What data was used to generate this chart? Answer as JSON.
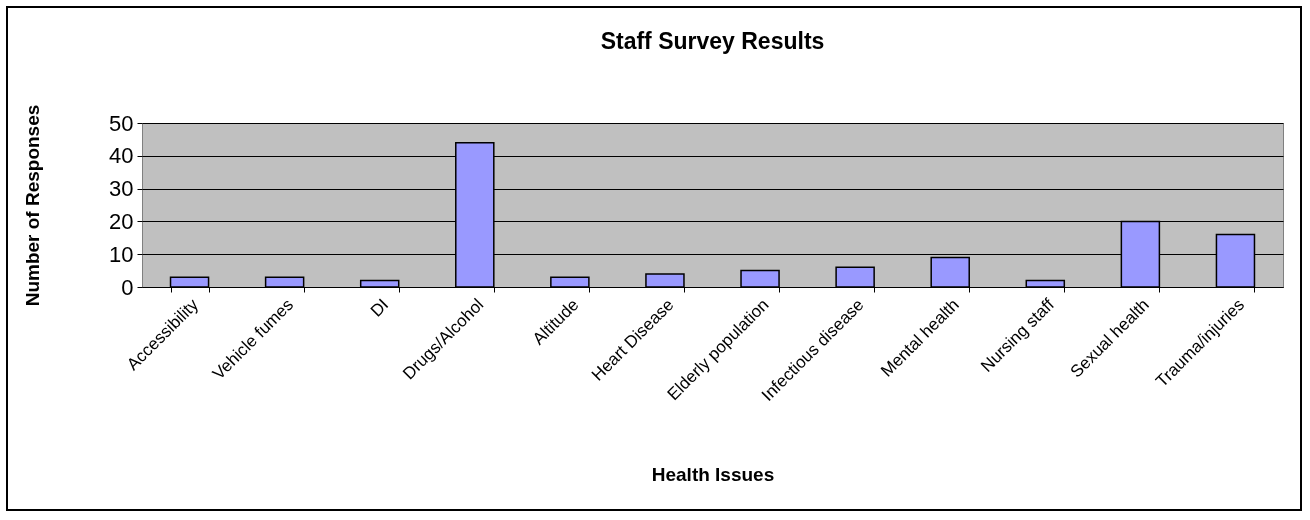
{
  "chart_data": {
    "type": "bar",
    "title": "Staff Survey Results",
    "xlabel": "Health Issues",
    "ylabel": "Number of Responses",
    "categories": [
      "Accessibility",
      "Vehicle fumes",
      "DI",
      "Drugs/Alcohol",
      "Altitude",
      "Heart Disease",
      "Elderly population",
      "Infectious disease",
      "Mental health",
      "Nursing staff",
      "Sexual health",
      "Trauma/injuries"
    ],
    "values": [
      3,
      3,
      2,
      44,
      3,
      4,
      5,
      6,
      9,
      2,
      20,
      16
    ],
    "color": "#9999ff",
    "ylim": [
      0,
      50
    ],
    "yticks": [
      0,
      10,
      20,
      30,
      40,
      50
    ],
    "grid": "y"
  }
}
